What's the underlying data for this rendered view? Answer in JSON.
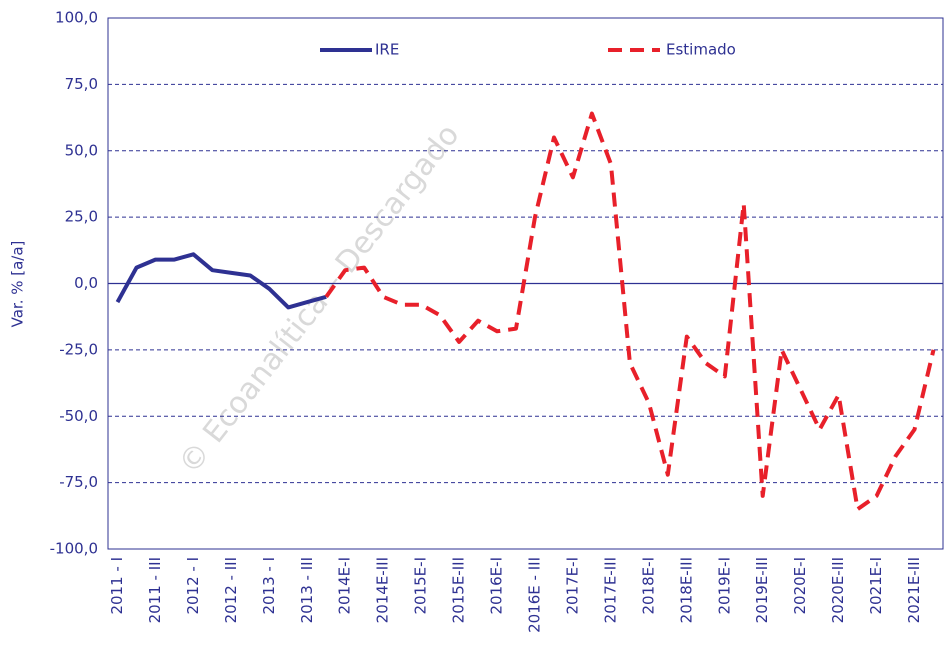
{
  "chart_data": {
    "type": "line",
    "y_label": "Var. % [a/a]",
    "watermark": "© Ecoanalítica – Descargado",
    "categories": [
      "2011 - I",
      null,
      "2011 - III",
      null,
      "2012 - I",
      null,
      "2012 - III",
      null,
      "2013 - I",
      null,
      "2013 - III",
      null,
      "2014E-I",
      null,
      "2014E-III",
      null,
      "2015E-I",
      null,
      "2015E-III",
      null,
      "2016E-I",
      null,
      "2016E - III",
      null,
      "2017E-I",
      null,
      "2017E-III",
      null,
      "2018E-I",
      null,
      "2018E-III",
      null,
      "2019E-I",
      null,
      "2019E-III",
      null,
      "2020E-I",
      null,
      "2020E-III",
      null,
      "2021E-I",
      null,
      "2021E-III",
      null
    ],
    "series": [
      {
        "name": "IRE",
        "color": "#2e3192",
        "dashed": false,
        "values": [
          -7,
          6,
          9,
          9,
          11,
          5,
          4,
          3,
          -2,
          -9,
          -7,
          -5,
          null,
          null,
          null,
          null,
          null,
          null,
          null,
          null,
          null,
          null,
          null,
          null,
          null,
          null,
          null,
          null,
          null,
          null,
          null,
          null,
          null,
          null,
          null,
          null,
          null,
          null,
          null,
          null,
          null,
          null,
          null,
          null
        ]
      },
      {
        "name": "Estimado",
        "color": "#e8202a",
        "dashed": true,
        "values": [
          null,
          null,
          null,
          null,
          null,
          null,
          null,
          null,
          null,
          null,
          null,
          -5,
          5,
          6,
          -5,
          -8,
          -8,
          -12,
          -22,
          -14,
          -18,
          -17,
          25,
          55,
          40,
          64,
          45,
          -30,
          -45,
          -72,
          -20,
          -30,
          -35,
          30,
          -80,
          -25,
          -40,
          -55,
          -42,
          -85,
          -80,
          -65,
          -55,
          -25
        ]
      }
    ],
    "ylim": [
      -100,
      100
    ],
    "yticks": [
      {
        "value": -100,
        "label": "-100,0"
      },
      {
        "value": -75,
        "label": "-75,0"
      },
      {
        "value": -50,
        "label": "-50,0"
      },
      {
        "value": -25,
        "label": "-25,0"
      },
      {
        "value": 0,
        "label": "0,0"
      },
      {
        "value": 25,
        "label": "25,0"
      },
      {
        "value": 50,
        "label": "50,0"
      },
      {
        "value": 75,
        "label": "75,0"
      },
      {
        "value": 100,
        "label": "100,0"
      }
    ],
    "grid": true,
    "legend": "top"
  }
}
